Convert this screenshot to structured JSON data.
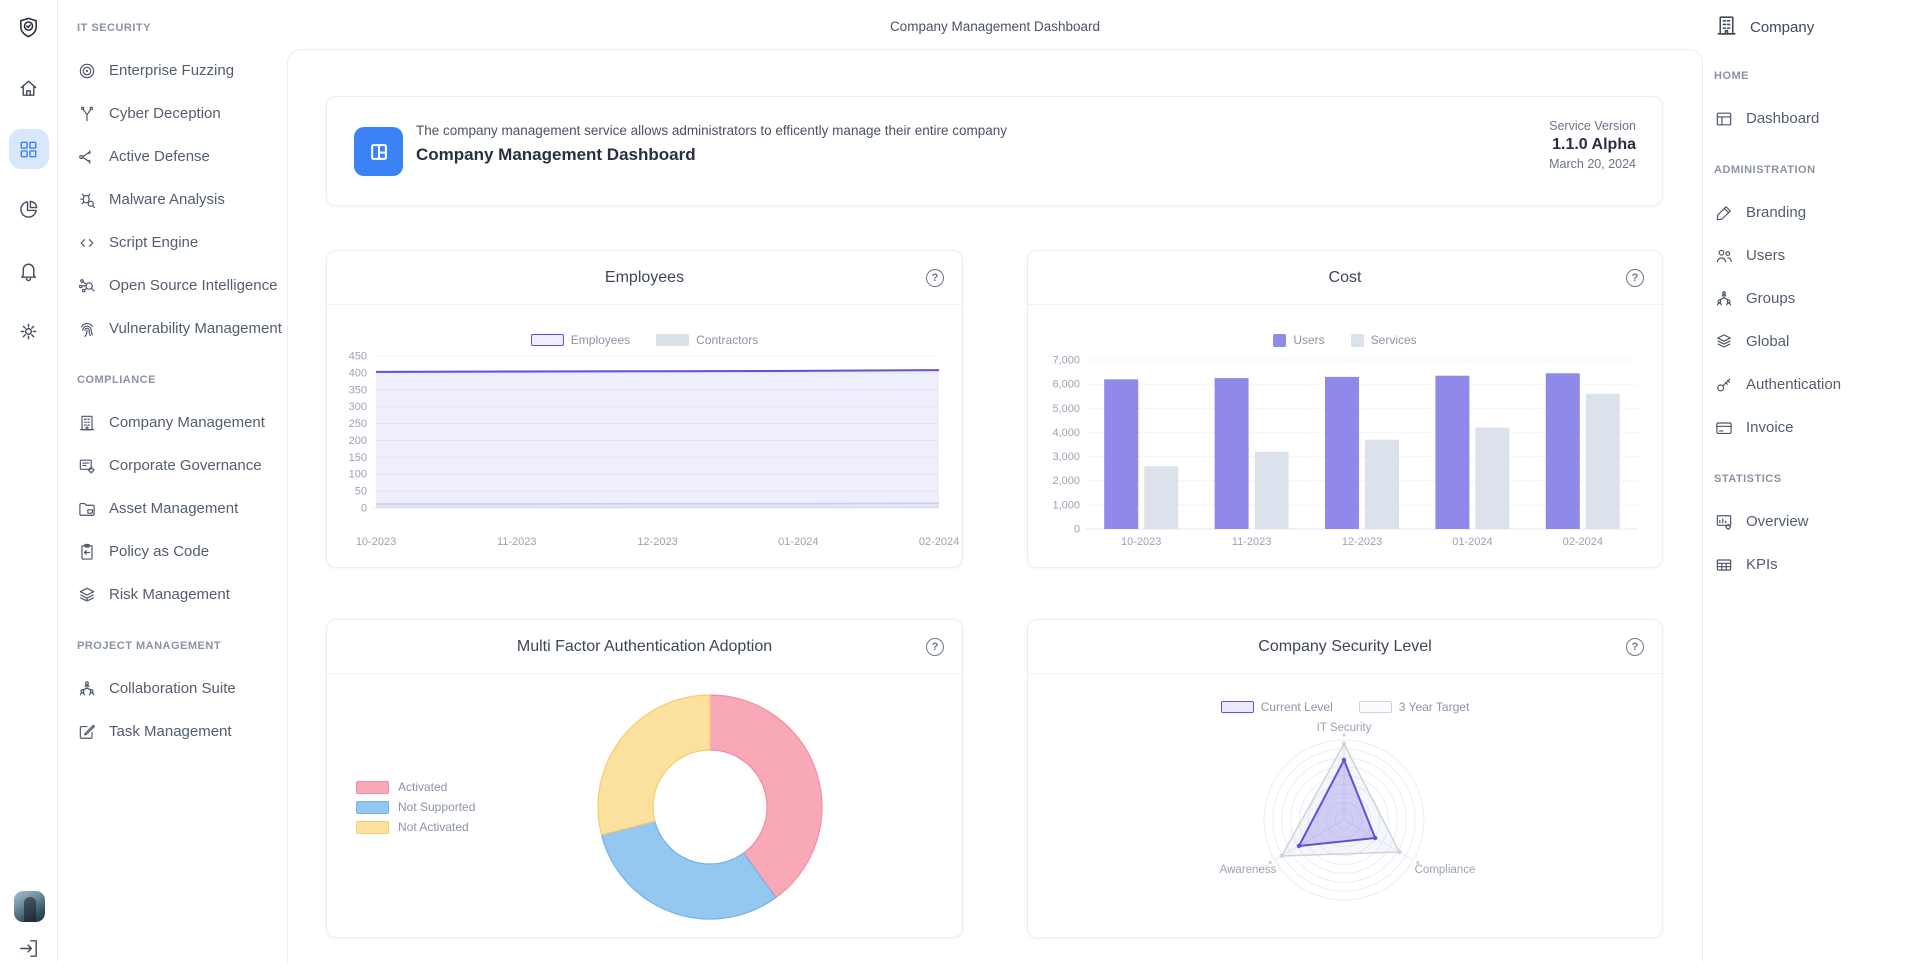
{
  "app": {
    "top_title": "Company Management Dashboard"
  },
  "banner": {
    "description": "The company management service allows administrators to efficently manage their entire company",
    "title": "Company Management Dashboard",
    "meta_label": "Service Version",
    "version": "1.1.0 Alpha",
    "date": "March 20, 2024",
    "icon": "dashboard-tile-icon",
    "icon_bg": "#3b82f6"
  },
  "rail": {
    "active_item": "apps-grid",
    "active_bg": "#d9e7fd",
    "active_color": "#3b82f6",
    "icons": [
      "logo-shield",
      "home",
      "apps-grid",
      "pie-chart",
      "notifications-bell",
      "settings-gear",
      "user-avatar",
      "sign-out"
    ]
  },
  "left_nav": {
    "sections": [
      {
        "label": "IT SECURITY",
        "items": [
          {
            "label": "Enterprise Fuzzing",
            "icon": "target"
          },
          {
            "label": "Cyber Deception",
            "icon": "branch"
          },
          {
            "label": "Active Defense",
            "icon": "share"
          },
          {
            "label": "Malware Analysis",
            "icon": "bug-search"
          },
          {
            "label": "Script Engine",
            "icon": "code"
          },
          {
            "label": "Open Source Intelligence",
            "icon": "network-search"
          },
          {
            "label": "Vulnerability Management",
            "icon": "fingerprint"
          }
        ]
      },
      {
        "label": "COMPLIANCE",
        "items": [
          {
            "label": "Company Management",
            "icon": "building"
          },
          {
            "label": "Corporate Governance",
            "icon": "document-gear"
          },
          {
            "label": "Asset Management",
            "icon": "folder"
          },
          {
            "label": "Policy as Code",
            "icon": "clipboard"
          },
          {
            "label": "Risk Management",
            "icon": "layers"
          }
        ]
      },
      {
        "label": "PROJECT MANAGEMENT",
        "items": [
          {
            "label": "Collaboration Suite",
            "icon": "org-people"
          },
          {
            "label": "Task Management",
            "icon": "task-edit"
          }
        ]
      }
    ]
  },
  "right_nav": {
    "company_label": "Company",
    "sections": [
      {
        "label": "HOME",
        "items": [
          {
            "label": "Dashboard",
            "icon": "window"
          }
        ]
      },
      {
        "label": "ADMINISTRATION",
        "items": [
          {
            "label": "Branding",
            "icon": "pen"
          },
          {
            "label": "Users",
            "icon": "users"
          },
          {
            "label": "Groups",
            "icon": "group-org"
          },
          {
            "label": "Global",
            "icon": "stack"
          },
          {
            "label": "Authentication",
            "icon": "key"
          },
          {
            "label": "Invoice",
            "icon": "credit-card"
          }
        ]
      },
      {
        "label": "STATISTICS",
        "items": [
          {
            "label": "Overview",
            "icon": "board-stats"
          },
          {
            "label": "KPIs",
            "icon": "table"
          }
        ]
      }
    ]
  },
  "cards": [
    {
      "title": "Employees"
    },
    {
      "title": "Cost"
    },
    {
      "title": "Multi Factor Authentication Adoption"
    },
    {
      "title": "Company Security Level"
    }
  ],
  "chart_data": [
    {
      "type": "line",
      "title": "Employees",
      "x": [
        "10-2023",
        "11-2023",
        "12-2023",
        "01-2024",
        "02-2024"
      ],
      "series": [
        {
          "name": "Employees",
          "values": [
            403,
            404,
            405,
            406,
            408
          ],
          "color": "#5b54d6",
          "fill": "rgba(124,118,237,0.12)",
          "swatch_bg": "#efeefc"
        },
        {
          "name": "Contractors",
          "values": [
            12,
            12,
            13,
            13,
            14
          ],
          "color": "#c9d1de",
          "fill": "rgba(201,209,222,0.28)",
          "swatch_bg": "#dadfe8"
        }
      ],
      "ylim": [
        0,
        450
      ],
      "ytick": 50,
      "grid": true,
      "legend_position": "top"
    },
    {
      "type": "bar",
      "title": "Cost",
      "x": [
        "10-2023",
        "11-2023",
        "12-2023",
        "01-2024",
        "02-2024"
      ],
      "series": [
        {
          "name": "Users",
          "values": [
            6200,
            6250,
            6300,
            6350,
            6450
          ],
          "color": "#8f8aea"
        },
        {
          "name": "Services",
          "values": [
            2600,
            3200,
            3700,
            4200,
            5600
          ],
          "color": "#dce2eb"
        }
      ],
      "ylim": [
        0,
        7000
      ],
      "ytick": 1000,
      "grid": true,
      "legend_position": "top"
    },
    {
      "type": "pie",
      "title": "Multi Factor Authentication Adoption",
      "labels": [
        "Activated",
        "Not Supported",
        "Not Activated"
      ],
      "values": [
        40,
        31,
        29
      ],
      "colors": [
        "#f9a8b8",
        "#94c8f0",
        "#fbe09e"
      ],
      "borders": [
        "#f48ba4",
        "#74b2e6",
        "#f3cd74"
      ],
      "donut": true,
      "legend_position": "left"
    },
    {
      "type": "radar",
      "title": "Company Security Level",
      "axes": [
        "IT Security",
        "Compliance",
        "Awareness"
      ],
      "series": [
        {
          "name": "Current Level",
          "values": [
            75,
            45,
            65
          ],
          "color": "#5b54d6",
          "fill": "rgba(109,102,231,0.28)",
          "swatch_bg": "#eceafc"
        },
        {
          "name": "3 Year Target",
          "values": [
            95,
            80,
            90
          ],
          "color": "#ccd4e0",
          "fill": "rgba(197,206,221,0.18)",
          "swatch_bg": "#fbfcfe"
        }
      ],
      "scale": [
        0,
        100
      ],
      "legend_position": "top"
    }
  ]
}
